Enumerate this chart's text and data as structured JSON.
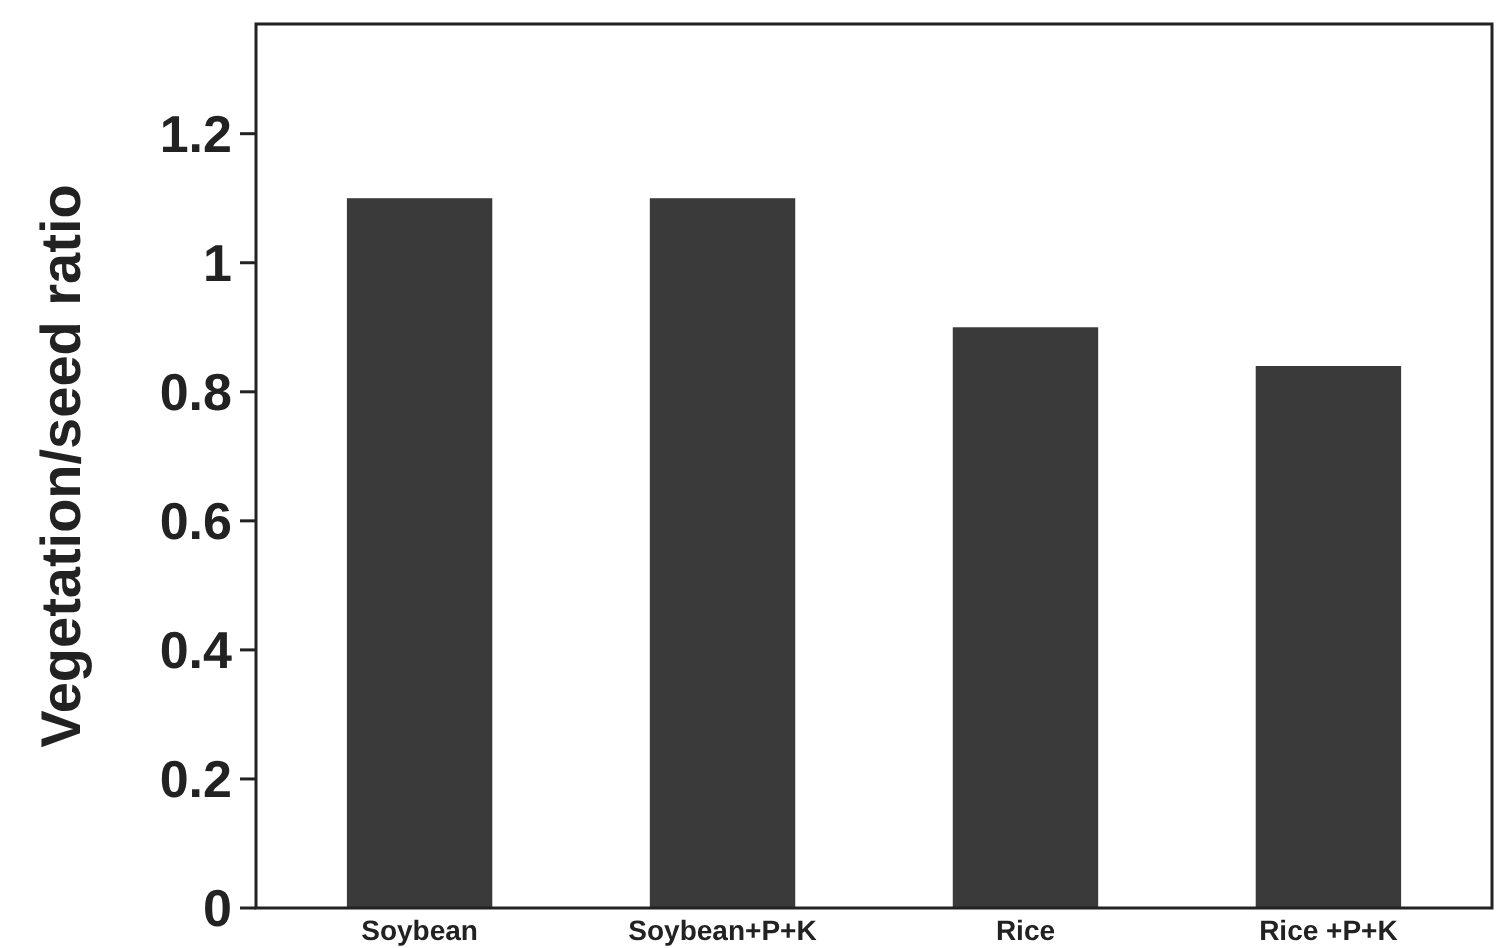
{
  "chart_data": {
    "type": "bar",
    "ylabel": "Vegetation/seed ratio",
    "categories": [
      "Soybean",
      "Soybean+P+K",
      "Rice",
      "Rice +P+K"
    ],
    "values": [
      1.1,
      1.1,
      0.9,
      0.84
    ],
    "color": "#3a3a3a",
    "ylim": [
      0,
      1.37
    ],
    "yticks": [
      0,
      0.2,
      0.4,
      0.6,
      0.8,
      1,
      1.2
    ],
    "grid": false
  }
}
